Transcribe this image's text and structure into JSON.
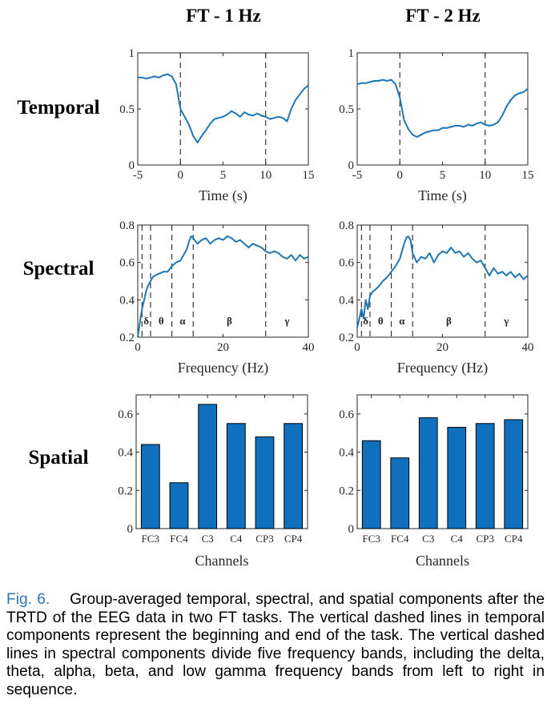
{
  "figure": {
    "col_titles": [
      "FT - 1 Hz",
      "FT - 2 Hz"
    ],
    "row_titles": [
      "Temporal",
      "Spectral",
      "Spatial"
    ],
    "colors": {
      "line": "#1f77b4",
      "bar": "#1070bd"
    }
  },
  "caption": {
    "label": "Fig. 6.",
    "text": "Group-averaged temporal, spectral, and spatial components after the TRTD of the EEG data in two FT tasks. The vertical dashed lines in temporal components represent the beginning and end of the task. The vertical dashed lines in spectral components divide five frequency bands, including the delta, theta, alpha, beta, and low gamma frequency bands from left to right in sequence."
  },
  "chart_data": [
    {
      "id": "temporal-1hz",
      "type": "line",
      "title": "FT - 1 Hz",
      "row": "Temporal",
      "xlabel": "Time (s)",
      "ylabel": "",
      "xlim": [
        -5,
        15
      ],
      "ylim": [
        0,
        1
      ],
      "xticks": [
        -5,
        0,
        5,
        10,
        15
      ],
      "yticks": [
        0,
        0.5,
        1
      ],
      "ytick_labels": [
        "0",
        "0.5",
        "1"
      ],
      "vlines": [
        0,
        10
      ],
      "x": [
        -5,
        -4.5,
        -4,
        -3.5,
        -3,
        -2.5,
        -2,
        -1.5,
        -1,
        -0.5,
        0,
        0.5,
        1,
        1.5,
        2,
        2.5,
        3,
        3.5,
        4,
        4.5,
        5,
        5.5,
        6,
        6.5,
        7,
        7.5,
        8,
        8.5,
        9,
        9.5,
        10,
        10.5,
        11,
        11.5,
        12,
        12.5,
        13,
        13.5,
        14,
        14.5,
        15
      ],
      "y": [
        0.78,
        0.78,
        0.77,
        0.78,
        0.79,
        0.78,
        0.8,
        0.81,
        0.79,
        0.72,
        0.5,
        0.43,
        0.36,
        0.26,
        0.2,
        0.26,
        0.31,
        0.37,
        0.41,
        0.42,
        0.43,
        0.45,
        0.48,
        0.46,
        0.43,
        0.47,
        0.45,
        0.44,
        0.46,
        0.44,
        0.43,
        0.41,
        0.42,
        0.43,
        0.42,
        0.39,
        0.5,
        0.58,
        0.63,
        0.68,
        0.71
      ]
    },
    {
      "id": "temporal-2hz",
      "type": "line",
      "title": "FT - 2 Hz",
      "row": "Temporal",
      "xlabel": "Time (s)",
      "ylabel": "",
      "xlim": [
        -5,
        15
      ],
      "ylim": [
        0,
        1
      ],
      "xticks": [
        -5,
        0,
        5,
        10,
        15
      ],
      "yticks": [
        0,
        0.5,
        1
      ],
      "ytick_labels": [
        "0",
        "0.5",
        "1"
      ],
      "vlines": [
        0,
        10
      ],
      "x": [
        -5,
        -4.5,
        -4,
        -3.5,
        -3,
        -2.5,
        -2,
        -1.5,
        -1,
        -0.5,
        0,
        0.5,
        1,
        1.5,
        2,
        2.5,
        3,
        3.5,
        4,
        4.5,
        5,
        5.5,
        6,
        6.5,
        7,
        7.5,
        8,
        8.5,
        9,
        9.5,
        10,
        10.5,
        11,
        11.5,
        12,
        12.5,
        13,
        13.5,
        14,
        14.5,
        15
      ],
      "y": [
        0.72,
        0.73,
        0.73,
        0.74,
        0.75,
        0.75,
        0.76,
        0.75,
        0.76,
        0.72,
        0.6,
        0.4,
        0.32,
        0.27,
        0.25,
        0.27,
        0.29,
        0.3,
        0.31,
        0.31,
        0.33,
        0.33,
        0.34,
        0.35,
        0.35,
        0.34,
        0.36,
        0.35,
        0.37,
        0.38,
        0.36,
        0.35,
        0.36,
        0.38,
        0.44,
        0.52,
        0.58,
        0.62,
        0.64,
        0.65,
        0.68
      ]
    },
    {
      "id": "spectral-1hz",
      "type": "line",
      "row": "Spectral",
      "xlabel": "Frequency (Hz)",
      "ylabel": "",
      "xlim": [
        0,
        40
      ],
      "ylim": [
        0.2,
        0.8
      ],
      "xticks": [
        0,
        20,
        40
      ],
      "yticks": [
        0.2,
        0.4,
        0.6,
        0.8
      ],
      "ytick_labels": [
        "0.2",
        "0.4",
        "0.6",
        "0.8"
      ],
      "vlines": [
        1,
        3,
        8,
        13,
        30
      ],
      "bands": [
        {
          "label": "δ",
          "x": 2
        },
        {
          "label": "θ",
          "x": 5.5
        },
        {
          "label": "α",
          "x": 10.5
        },
        {
          "label": "β",
          "x": 21.5
        },
        {
          "label": "γ",
          "x": 35
        }
      ],
      "x": [
        0,
        0.5,
        1,
        1.5,
        2,
        2.5,
        3,
        3.5,
        4,
        5,
        6,
        7,
        8,
        9,
        10,
        10.5,
        11,
        11.5,
        12,
        12.5,
        13,
        14,
        15,
        16,
        17,
        18,
        19,
        20,
        21,
        22,
        23,
        24,
        25,
        26,
        27,
        28,
        29,
        30,
        31,
        32,
        33,
        34,
        35,
        36,
        37,
        38,
        39,
        40
      ],
      "y": [
        0.2,
        0.28,
        0.35,
        0.4,
        0.45,
        0.48,
        0.5,
        0.52,
        0.53,
        0.54,
        0.55,
        0.55,
        0.58,
        0.6,
        0.61,
        0.63,
        0.65,
        0.67,
        0.71,
        0.74,
        0.73,
        0.7,
        0.72,
        0.73,
        0.7,
        0.72,
        0.73,
        0.72,
        0.74,
        0.73,
        0.71,
        0.72,
        0.7,
        0.68,
        0.7,
        0.69,
        0.68,
        0.66,
        0.65,
        0.66,
        0.65,
        0.63,
        0.62,
        0.64,
        0.61,
        0.64,
        0.62,
        0.63
      ]
    },
    {
      "id": "spectral-2hz",
      "type": "line",
      "row": "Spectral",
      "xlabel": "Frequency (Hz)",
      "ylabel": "",
      "xlim": [
        0,
        40
      ],
      "ylim": [
        0.2,
        0.8
      ],
      "xticks": [
        0,
        20,
        40
      ],
      "yticks": [
        0.2,
        0.4,
        0.6,
        0.8
      ],
      "ytick_labels": [
        "0.2",
        "0.4",
        "0.6",
        "0.8"
      ],
      "vlines": [
        1,
        3,
        8,
        13,
        30
      ],
      "bands": [
        {
          "label": "δ",
          "x": 2
        },
        {
          "label": "θ",
          "x": 5.5
        },
        {
          "label": "α",
          "x": 10.5
        },
        {
          "label": "β",
          "x": 21.5
        },
        {
          "label": "γ",
          "x": 35
        }
      ],
      "x": [
        0,
        0.5,
        1,
        1.5,
        2,
        2.5,
        3,
        3.5,
        4,
        5,
        6,
        7,
        8,
        9,
        10,
        10.5,
        11,
        11.5,
        12,
        12.5,
        13,
        14,
        15,
        16,
        17,
        18,
        19,
        20,
        21,
        22,
        23,
        24,
        25,
        26,
        27,
        28,
        29,
        30,
        31,
        32,
        33,
        34,
        35,
        36,
        37,
        38,
        39,
        40
      ],
      "y": [
        0.25,
        0.3,
        0.35,
        0.3,
        0.4,
        0.35,
        0.42,
        0.44,
        0.45,
        0.47,
        0.5,
        0.52,
        0.55,
        0.58,
        0.62,
        0.66,
        0.7,
        0.73,
        0.74,
        0.72,
        0.65,
        0.6,
        0.63,
        0.62,
        0.65,
        0.6,
        0.64,
        0.66,
        0.65,
        0.68,
        0.65,
        0.66,
        0.63,
        0.65,
        0.62,
        0.6,
        0.61,
        0.57,
        0.53,
        0.57,
        0.54,
        0.55,
        0.53,
        0.55,
        0.52,
        0.54,
        0.51,
        0.53
      ]
    },
    {
      "id": "spatial-1hz",
      "type": "bar",
      "row": "Spatial",
      "xlabel": "Channels",
      "ylabel": "",
      "ylim": [
        0,
        0.7
      ],
      "yticks": [
        0,
        0.2,
        0.4,
        0.6
      ],
      "ytick_labels": [
        "0",
        "0.2",
        "0.4",
        "0.6"
      ],
      "categories": [
        "FC3",
        "FC4",
        "C3",
        "C4",
        "CP3",
        "CP4"
      ],
      "values": [
        0.44,
        0.24,
        0.65,
        0.55,
        0.48,
        0.55
      ]
    },
    {
      "id": "spatial-2hz",
      "type": "bar",
      "row": "Spatial",
      "xlabel": "Channels",
      "ylabel": "",
      "ylim": [
        0,
        0.7
      ],
      "yticks": [
        0,
        0.2,
        0.4,
        0.6
      ],
      "ytick_labels": [
        "0",
        "0.2",
        "0.4",
        "0.6"
      ],
      "categories": [
        "FC3",
        "FC4",
        "C3",
        "C4",
        "CP3",
        "CP4"
      ],
      "values": [
        0.46,
        0.37,
        0.58,
        0.53,
        0.55,
        0.57
      ]
    }
  ]
}
